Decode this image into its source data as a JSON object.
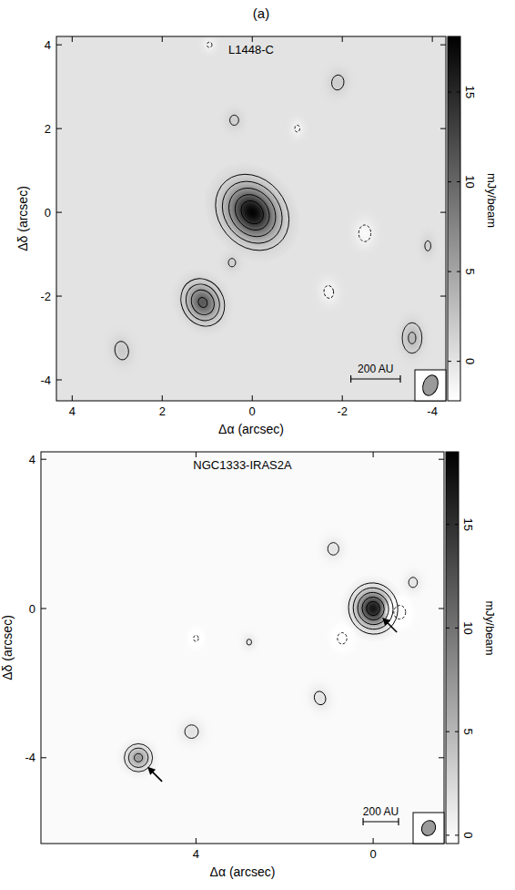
{
  "panel_label": "(a)",
  "chart_data": [
    {
      "type": "contour",
      "title": "L1448-C",
      "x_label": "Δα (arcsec)",
      "y_label": "Δδ (arcsec)",
      "xlim": [
        4.35,
        -4.3
      ],
      "ylim": [
        -4.5,
        4.2
      ],
      "xticks": [
        4,
        2,
        0,
        -2,
        -4
      ],
      "yticks": [
        -4,
        -2,
        0,
        2,
        4
      ],
      "levels": [
        -1.2,
        1.2,
        3,
        6,
        10,
        14
      ],
      "background_level": 0,
      "colorbar": {
        "label": "mJy/beam",
        "range": [
          -2.2,
          18.1
        ],
        "ticks": [
          0,
          5,
          10,
          15
        ]
      },
      "beam": {
        "major": 0.5,
        "minor": 0.32,
        "pa": -20
      },
      "scale_bar": {
        "label": "200 AU",
        "length": 1.1
      },
      "sources": [
        {
          "x": 0,
          "y": 0,
          "peak": 18,
          "major": 0.42,
          "minor": 0.32,
          "pa": 40
        },
        {
          "x": 1.1,
          "y": -2.15,
          "peak": 11,
          "major": 0.28,
          "minor": 0.22,
          "pa": 30
        },
        {
          "x": 0.45,
          "y": -1.2,
          "peak": 1.5,
          "major": 0.15,
          "minor": 0.12,
          "pa": 0
        },
        {
          "x": 2.9,
          "y": -3.3,
          "peak": 2.0,
          "major": 0.22,
          "minor": 0.15,
          "pa": 10
        },
        {
          "x": 0.4,
          "y": 2.2,
          "peak": 1.6,
          "major": 0.16,
          "minor": 0.13,
          "pa": 0
        },
        {
          "x": -1.9,
          "y": 3.1,
          "peak": 1.8,
          "major": 0.2,
          "minor": 0.15,
          "pa": -10
        },
        {
          "x": -3.55,
          "y": -3.0,
          "peak": 3.5,
          "major": 0.25,
          "minor": 0.15,
          "pa": 0
        },
        {
          "x": -3.9,
          "y": -0.8,
          "peak": 1.5,
          "major": 0.18,
          "minor": 0.1,
          "pa": 0
        },
        {
          "x": -2.5,
          "y": -0.5,
          "peak": -1.8,
          "major": 0.22,
          "minor": 0.15,
          "pa": 0
        },
        {
          "x": -1.7,
          "y": -1.9,
          "peak": -1.6,
          "major": 0.2,
          "minor": 0.14,
          "pa": 10
        },
        {
          "x": -1.0,
          "y": 2.0,
          "peak": -1.4,
          "major": 0.15,
          "minor": 0.1,
          "pa": 0
        },
        {
          "x": 0.95,
          "y": 4.0,
          "peak": -1.4,
          "major": 0.12,
          "minor": 0.1,
          "pa": 0
        }
      ]
    },
    {
      "type": "contour",
      "title": "NGC1333-IRAS2A",
      "x_label": "Δα (arcsec)",
      "y_label": "Δδ (arcsec)",
      "xlim": [
        7.5,
        -1.6
      ],
      "ylim": [
        -6.3,
        4.2
      ],
      "xticks": [
        4,
        0
      ],
      "yticks": [
        -4,
        0,
        4
      ],
      "levels": [
        -1.2,
        1.2,
        3,
        6,
        10,
        14
      ],
      "background_level": 0,
      "colorbar": {
        "label": "mJy/beam",
        "range": [
          -0.4,
          18.5
        ],
        "ticks": [
          0,
          5,
          10,
          15
        ]
      },
      "beam": {
        "major": 0.42,
        "minor": 0.3,
        "pa": -30
      },
      "scale_bar": {
        "label": "200 AU",
        "length": 0.8
      },
      "sources": [
        {
          "x": 0,
          "y": 0,
          "peak": 17,
          "major": 0.3,
          "minor": 0.24,
          "pa": 20
        },
        {
          "x": 5.3,
          "y": -4.0,
          "peak": 7,
          "major": 0.2,
          "minor": 0.17,
          "pa": 0
        },
        {
          "x": 0.9,
          "y": 1.6,
          "peak": 1.7,
          "major": 0.2,
          "minor": 0.15,
          "pa": 0
        },
        {
          "x": -0.9,
          "y": 0.7,
          "peak": 1.6,
          "major": 0.18,
          "minor": 0.13,
          "pa": 0
        },
        {
          "x": 4.1,
          "y": -3.3,
          "peak": 1.8,
          "major": 0.2,
          "minor": 0.17,
          "pa": 0
        },
        {
          "x": 2.8,
          "y": -0.9,
          "peak": 1.4,
          "major": 0.14,
          "minor": 0.1,
          "pa": 0
        },
        {
          "x": 1.2,
          "y": -2.4,
          "peak": 1.7,
          "major": 0.22,
          "minor": 0.15,
          "pa": 20
        },
        {
          "x": -0.6,
          "y": -0.1,
          "peak": -1.7,
          "major": 0.22,
          "minor": 0.16,
          "pa": 0
        },
        {
          "x": 0.7,
          "y": -0.8,
          "peak": -1.6,
          "major": 0.2,
          "minor": 0.14,
          "pa": 0
        },
        {
          "x": 4.0,
          "y": -0.8,
          "peak": -1.4,
          "major": 0.15,
          "minor": 0.1,
          "pa": 0
        }
      ]
    }
  ]
}
